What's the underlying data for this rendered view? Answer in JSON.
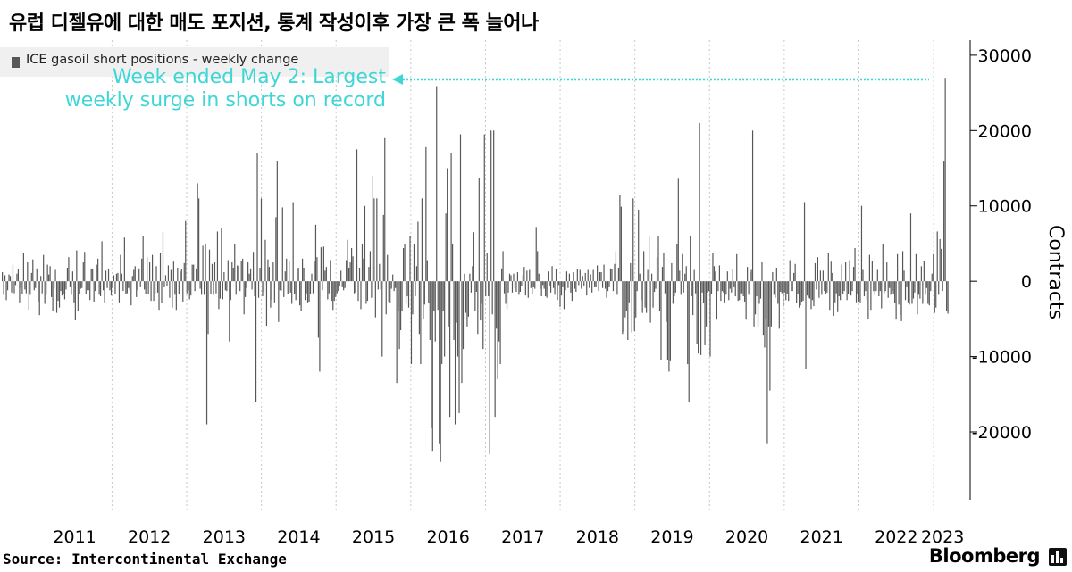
{
  "title": "유럽 디젤유에 대한 매도 포지션, 통계 작성이후 가장 큰 폭 늘어나",
  "legend_label": "ICE gasoil short positions - weekly change",
  "annotation": {
    "line1": "Week ended May 2: Largest",
    "line2": "weekly surge in shorts on record",
    "color": "#3fd6d6"
  },
  "source": "Source: Intercontinental Exchange",
  "brand": "Bloomberg",
  "colors": {
    "bar": "#575757",
    "grid": "#c8c8c8",
    "annotation": "#3fd6d6"
  },
  "chart_data": {
    "type": "bar",
    "title": "유럽 디젤유에 대한 매도 포지션, 통계 작성이후 가장 큰 폭 늘어나",
    "ylabel": "Contracts",
    "ylim": [
      -29000,
      32000
    ],
    "yticks": [
      30000,
      20000,
      10000,
      0,
      -10000,
      -20000
    ],
    "ytick_labels": [
      "30000",
      "20000",
      "10000",
      "0",
      "-10000",
      "-20000"
    ],
    "xlabels": [
      "2011",
      "2012",
      "2013",
      "2014",
      "2015",
      "2016",
      "2017",
      "2018",
      "2019",
      "2020",
      "2021",
      "2022",
      "2023"
    ],
    "x_start_year": 2010.5,
    "x_end_year": 2023.25,
    "legend_placement": "top-left",
    "grid": "vertical dotted",
    "series": [
      {
        "name": "ICE gasoil short positions - weekly change",
        "values": [
          1200,
          -1800,
          800,
          -2500,
          -1200,
          900,
          700,
          -1500,
          2200,
          -1600,
          -500,
          1000,
          1600,
          -2800,
          -900,
          -1700,
          3800,
          -1100,
          -1600,
          2500,
          -3800,
          -1800,
          1100,
          2900,
          -1200,
          -900,
          1700,
          -2700,
          -4500,
          700,
          -1600,
          3500,
          -3000,
          -1800,
          2200,
          900,
          2000,
          -2100,
          -3900,
          -1000,
          1500,
          -4200,
          -2600,
          -3500,
          -1300,
          -1900,
          -1700,
          -2400,
          -1100,
          1800,
          3200,
          -800,
          -1800,
          1300,
          -2800,
          -5200,
          4100,
          -3900,
          -1700,
          -1000,
          -900,
          2500,
          3900,
          -1700,
          -1200,
          -1200,
          -2500,
          1700,
          1600,
          -2700,
          -1300,
          2200,
          3000,
          -1800,
          -2000,
          5300,
          -1200,
          -2800,
          1400,
          -900,
          1600,
          -1200,
          -1900,
          -900,
          800,
          -1700,
          1000,
          1100,
          -2800,
          3500,
          1000,
          -1300,
          5800,
          -1700,
          -1600,
          -900,
          -1200,
          -3200,
          700,
          1500,
          2000,
          -2100,
          -1200,
          1700,
          -800,
          3000,
          6000,
          -1100,
          -1700,
          3200,
          -1700,
          2500,
          -2600,
          3500,
          -2600,
          -1700,
          2000,
          -1500,
          -3800,
          3700,
          -2900,
          6500,
          -800,
          800,
          -600,
          2100,
          -2200,
          1500,
          -3500,
          2600,
          -1800,
          -3800,
          1800,
          -1700,
          1300,
          1600,
          -2700,
          2400,
          8000,
          -1600,
          -1200,
          -2400,
          -1900,
          2200,
          2200,
          -1300,
          1700,
          13000,
          11000,
          -1000,
          -1800,
          4700,
          -1800,
          5000,
          -19000,
          -7000,
          4200,
          -1700,
          2300,
          -1800,
          2500,
          -1600,
          6600,
          -3700,
          -2300,
          7000,
          -2400,
          1200,
          -1200,
          -1300,
          2800,
          -8000,
          -2500,
          2500,
          1800,
          5000,
          -1800,
          2100,
          2000,
          -1300,
          2700,
          3000,
          -4400,
          -2100,
          -900,
          2500,
          1000,
          1700,
          -1100,
          3900,
          -2000,
          -16000,
          17000,
          -2200,
          1800,
          11000,
          -2000,
          -1400,
          5500,
          -5900,
          2900,
          1900,
          -3500,
          -2500,
          2500,
          -2800,
          8500,
          16000,
          -5400,
          -1200,
          -1300,
          9800,
          -2100,
          1300,
          3000,
          -1700,
          2600,
          -1500,
          -3000,
          10500,
          -1700,
          -2500,
          1600,
          1800,
          -3200,
          -3900,
          3000,
          1800,
          -2500,
          -1600,
          -2800,
          -2700,
          -1700,
          1000,
          -1600,
          2600,
          7500,
          3200,
          -7500,
          -12000,
          4500,
          -1200,
          4600,
          1400,
          1900,
          -2400,
          -1600,
          2800,
          -2600,
          -3800,
          -2600,
          -2100,
          -1600,
          -1300,
          -700,
          1400,
          -800,
          -1200,
          -900,
          2800,
          5500,
          1800,
          2500,
          4400,
          3300,
          -1600,
          -1500,
          17500,
          -2600,
          1800,
          -3700,
          5000,
          3000,
          10000,
          -3000,
          -2600,
          1900,
          4000,
          -2200,
          14000,
          11000,
          -4800,
          11000,
          -1100,
          2300,
          -1100,
          -10000,
          8800,
          19000,
          -4400,
          3500,
          -2700,
          -2800,
          -1000,
          900,
          -1300,
          -900,
          -13500,
          -4000,
          -9000,
          -6500,
          -4000,
          4400,
          5000,
          -3000,
          -2000,
          -3500,
          6000,
          -11000,
          -4400,
          5000,
          -2000,
          2000,
          7900,
          -7000,
          -11000,
          11000,
          -5000,
          -3100,
          17800,
          2800,
          -2900,
          -7800,
          -19500,
          -22500,
          -4000,
          -8000,
          25900,
          -3800,
          -21500,
          -24000,
          -11000,
          -4000,
          -10000,
          9000,
          15000,
          -6000,
          -18000,
          17000,
          5000,
          -7800,
          -19000,
          -5500,
          -10000,
          -17500,
          19500,
          -13500,
          -9000,
          1000,
          -4200,
          -6000,
          -4700,
          1000,
          -1500,
          2000,
          6500,
          -4000,
          -1400,
          -7000,
          13700,
          -5200,
          -3000,
          -9000,
          19500,
          -2000,
          3700,
          -2000,
          -23000,
          20000,
          -4400,
          20000,
          -18000,
          -6300,
          -13000,
          -8000,
          -11000,
          1700,
          4000,
          -1600,
          -3000,
          -3700,
          -1500,
          1000,
          800,
          -1500,
          1000,
          -900,
          -1400,
          1200,
          -1800,
          -1400,
          -600,
          800,
          1900,
          -1900,
          1400,
          -2200,
          1500,
          -900,
          -1700,
          -800,
          -1000,
          7200,
          4000,
          1000,
          -1000,
          -2000,
          -500,
          -1000,
          -2000,
          -2200,
          1300,
          -600,
          -1500,
          2000,
          -900,
          -1800,
          1600,
          -2500,
          -500,
          -3400,
          -1900,
          -800,
          -3700,
          -1200,
          1300,
          -900,
          1000,
          -1500,
          -2600,
          1200,
          -1000,
          -1400,
          1600,
          -500,
          1500,
          -1000,
          700,
          -700,
          1100,
          -1900,
          1500,
          -900,
          900,
          -1500,
          1500,
          -800,
          -800,
          2100,
          -1300,
          1200,
          1200,
          -900,
          2200,
          -1000,
          -2200,
          -1300,
          -800,
          1700,
          1600,
          -1300,
          2300,
          4000,
          -1800,
          1800,
          11500,
          9900,
          -7000,
          -6700,
          -4800,
          -4000,
          -7800,
          -2800,
          2400,
          -6800,
          11000,
          -6600,
          -4800,
          -1300,
          9500,
          1000,
          -2500,
          -4200,
          4000,
          -3500,
          -4200,
          1500,
          6000,
          -5500,
          1000,
          -3500,
          -1400,
          -1000,
          3200,
          6000,
          -4000,
          -10400,
          1900,
          3800,
          -1600,
          -5400,
          -10400,
          -12000,
          -10500,
          2400,
          -3000,
          -2000,
          -1500,
          5000,
          13600,
          1400,
          -1800,
          3600,
          -1500,
          1000,
          2000,
          -11000,
          -16000,
          6000,
          -2000,
          -4500,
          1500,
          -1600,
          -8300,
          -9600,
          21000,
          -9800,
          -1500,
          -2900,
          -8500,
          -6000,
          -1500,
          -1300,
          -10000,
          -1700,
          3700,
          2000,
          1300,
          -5100,
          -1300,
          2100,
          -2600,
          -1300,
          -1500,
          -2800,
          -1800,
          1300,
          -2500,
          -1000,
          -1500,
          1600,
          -800,
          -2000,
          3600,
          -2600,
          -2500,
          -1600,
          -1600,
          -2000,
          -2700,
          -5100,
          1900,
          -1800,
          1200,
          1500,
          20000,
          -6000,
          -4400,
          -2000,
          -6000,
          -3000,
          -2300,
          2500,
          -7100,
          -8800,
          -5000,
          -21500,
          -6000,
          -14500,
          -6000,
          1200,
          -1800,
          -2200,
          1800,
          -3000,
          -6300,
          -1400,
          -1600,
          -3400,
          -1500,
          -2500,
          -1700,
          -2600,
          2800,
          -1300,
          -1300,
          1100,
          2300,
          -2900,
          -1700,
          -3500,
          -3200,
          -2700,
          -2600,
          10500,
          -11700,
          -1900,
          -2200,
          -2300,
          -3700,
          -2500,
          -3300,
          2400,
          -1100,
          3200,
          -2200,
          1400,
          -1800,
          1400,
          -1300,
          -1700,
          -1500,
          3700,
          -3800,
          2600,
          1100,
          -4600,
          -2800,
          -1600,
          -4100,
          -2000,
          -2500,
          2200,
          -1700,
          -1300,
          2500,
          -2500,
          -1700,
          2800,
          -1900,
          -1300,
          1900,
          4400,
          -2800,
          -1700,
          -2700,
          -2800,
          10000,
          1500,
          -2000,
          -1300,
          -2500,
          -5000,
          3500,
          -3800,
          2700,
          -1300,
          -1800,
          -1300,
          1500,
          -2000,
          -1300,
          -3600,
          5000,
          -1600,
          -1300,
          2500,
          -2200,
          -900,
          -1800,
          -1300,
          -1700,
          -2900,
          -5100,
          3600,
          -3100,
          -4500,
          -5300,
          4000,
          1400,
          -2500,
          -800,
          -2800,
          -3100,
          9000,
          -3000,
          -2300,
          -1500,
          3600,
          -4400,
          -1800,
          -2300,
          2000,
          -3000,
          2700,
          -1800,
          -900,
          -3000,
          -3200,
          -1300,
          1000,
          3600,
          -4200,
          -3500,
          6600,
          -1800,
          5600,
          4300,
          -1300,
          16000,
          27000,
          -4000,
          -4300
        ]
      }
    ]
  }
}
